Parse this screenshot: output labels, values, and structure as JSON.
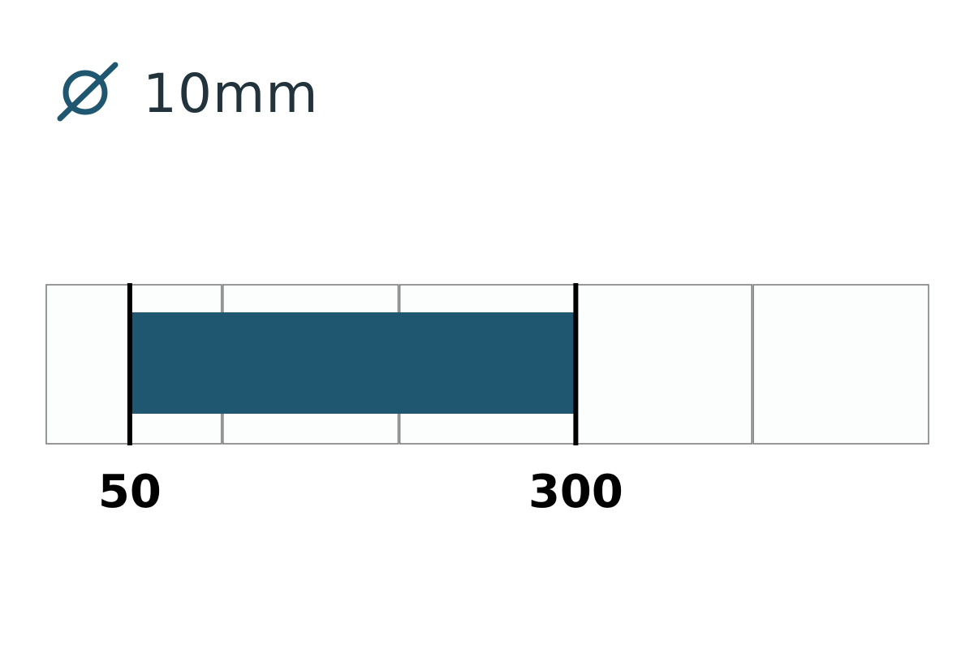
{
  "header": {
    "icon": "diameter-icon",
    "diameter": "10mm",
    "icon_color": "#1f5670",
    "text_color": "#22333b"
  },
  "scale": {
    "cells": 5,
    "cell_span": 100,
    "range": [
      0,
      500
    ],
    "fill_color": "#1f5670",
    "cell_fill": "#fcfefe",
    "cell_border": "#777777"
  },
  "range_marker": {
    "start": 50,
    "end": 300,
    "start_label": "50",
    "end_label": "300"
  }
}
